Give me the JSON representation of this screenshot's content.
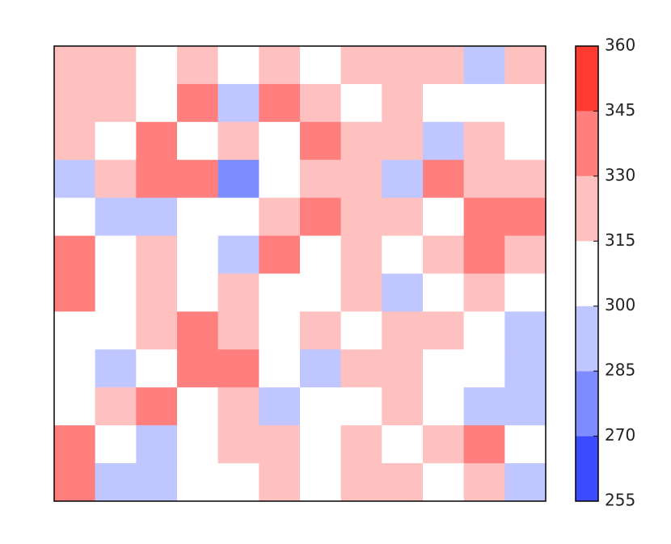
{
  "chart_data": {
    "type": "heatmap",
    "z": [
      [
        320,
        320,
        310,
        325,
        305,
        320,
        310,
        325,
        315,
        320,
        290,
        325
      ],
      [
        320,
        325,
        305,
        335,
        295,
        330,
        320,
        305,
        325,
        310,
        300,
        305
      ],
      [
        320,
        310,
        340,
        305,
        320,
        310,
        335,
        320,
        315,
        295,
        320,
        310
      ],
      [
        295,
        320,
        340,
        330,
        275,
        305,
        325,
        315,
        290,
        330,
        325,
        320
      ],
      [
        305,
        290,
        295,
        310,
        305,
        315,
        340,
        320,
        325,
        305,
        330,
        335
      ],
      [
        330,
        305,
        320,
        300,
        285,
        330,
        310,
        320,
        305,
        315,
        335,
        320
      ],
      [
        335,
        310,
        320,
        305,
        320,
        310,
        300,
        320,
        290,
        310,
        325,
        310
      ],
      [
        310,
        305,
        325,
        335,
        320,
        300,
        315,
        305,
        320,
        315,
        300,
        290
      ],
      [
        305,
        295,
        310,
        340,
        335,
        310,
        290,
        320,
        325,
        305,
        310,
        290
      ],
      [
        300,
        320,
        330,
        305,
        320,
        295,
        310,
        305,
        320,
        300,
        290,
        290
      ],
      [
        335,
        305,
        290,
        310,
        320,
        325,
        300,
        315,
        310,
        325,
        335,
        310
      ],
      [
        330,
        290,
        290,
        300,
        310,
        320,
        305,
        320,
        315,
        300,
        325,
        295
      ]
    ],
    "levels": [
      255,
      270,
      285,
      300,
      315,
      330,
      345,
      360
    ],
    "colors": [
      "#3b4cff",
      "#7d8cff",
      "#c0c6ff",
      "#ffffff",
      "#ffc0c0",
      "#ff7f7f",
      "#ff3b30"
    ]
  }
}
